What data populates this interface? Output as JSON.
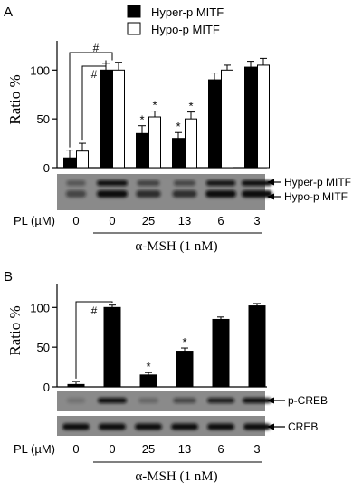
{
  "colors": {
    "filled": "#000000",
    "open": "#ffffff",
    "blot_bg": "#8a8a8a",
    "band": "#1a1a1a"
  },
  "chart_data": [
    {
      "panel": "A",
      "type": "bar",
      "ylabel": "Ratio %",
      "ylim": [
        0,
        130
      ],
      "yticks": [
        "0",
        "50",
        "100"
      ],
      "categories": [
        "0",
        "0",
        "25",
        "13",
        "6",
        "3"
      ],
      "x_prefix": "PL (µM)",
      "treatment": "α-MSH (1 nM)",
      "legend": [
        "Hyper-p MITF",
        "Hypo-p MITF"
      ],
      "series": [
        {
          "name": "Hyper-p MITF",
          "values": [
            10,
            100,
            35,
            30,
            90,
            103
          ],
          "err": [
            8,
            7,
            8,
            6,
            7,
            6
          ],
          "star": [
            false,
            false,
            true,
            true,
            false,
            false
          ]
        },
        {
          "name": "Hypo-p MITF",
          "values": [
            17,
            100,
            52,
            50,
            100,
            105
          ],
          "err": [
            8,
            8,
            6,
            7,
            5,
            7
          ],
          "star": [
            false,
            false,
            true,
            true,
            false,
            false
          ]
        }
      ],
      "sig": "#",
      "blot_labels": [
        "Hyper-p MITF",
        "Hypo-p MITF"
      ]
    },
    {
      "panel": "B",
      "type": "bar",
      "ylabel": "Ratio %",
      "ylim": [
        0,
        130
      ],
      "yticks": [
        "0",
        "50",
        "100"
      ],
      "categories": [
        "0",
        "0",
        "25",
        "13",
        "6",
        "3"
      ],
      "x_prefix": "PL (µM)",
      "treatment": "α-MSH (1 nM)",
      "series": [
        {
          "name": "p-CREB",
          "values": [
            3,
            100,
            15,
            45,
            85,
            102
          ],
          "err": [
            4,
            3,
            3,
            4,
            3,
            3
          ],
          "star": [
            false,
            false,
            true,
            true,
            false,
            false
          ]
        }
      ],
      "sig": "#",
      "blot_labels": [
        "p-CREB",
        "CREB"
      ]
    }
  ]
}
